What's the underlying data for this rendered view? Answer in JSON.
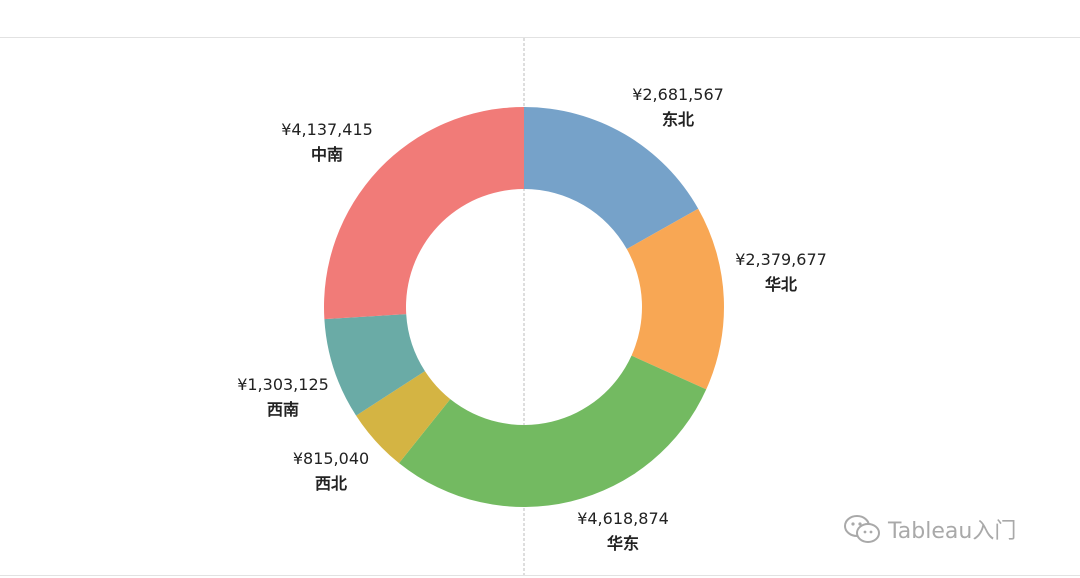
{
  "watermark": {
    "text": "Tableau入门"
  },
  "chart_data": {
    "type": "pie",
    "donut": true,
    "start_angle_deg": 0,
    "direction": "clockwise",
    "slices": [
      {
        "label": "东北",
        "value": 2681567,
        "value_label": "¥2,681,567",
        "color": "#76a2c9"
      },
      {
        "label": "华北",
        "value": 2379677,
        "value_label": "¥2,379,677",
        "color": "#f8a754"
      },
      {
        "label": "华东",
        "value": 4618874,
        "value_label": "¥4,618,874",
        "color": "#73ba61"
      },
      {
        "label": "西北",
        "value": 815040,
        "value_label": "¥815,040",
        "color": "#d4b443"
      },
      {
        "label": "西南",
        "value": 1303125,
        "value_label": "¥1,303,125",
        "color": "#6aaba6"
      },
      {
        "label": "中南",
        "value": 4137415,
        "value_label": "¥4,137,415",
        "color": "#f17b78"
      }
    ]
  }
}
